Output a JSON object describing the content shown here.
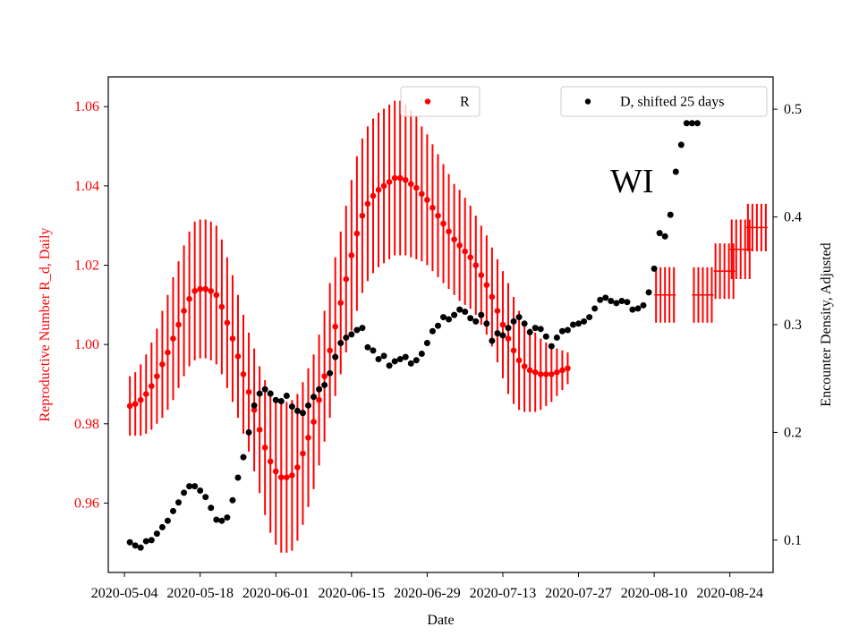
{
  "chart_data": {
    "type": "scatter",
    "xlabel": "Date",
    "ylabel_left": "Reproductive Number R_d, Daily",
    "ylabel_right": "Encounter Density, Adjusted",
    "annotation": "WI",
    "x_range": [
      "2020-05-01",
      "2020-09-01"
    ],
    "ylim_left": [
      0.9425,
      1.0675
    ],
    "ylim_right": [
      0.07,
      0.53
    ],
    "x_ticks": [
      "2020-05-04",
      "2020-05-18",
      "2020-06-01",
      "2020-06-15",
      "2020-06-29",
      "2020-07-13",
      "2020-07-27",
      "2020-08-10",
      "2020-08-24"
    ],
    "y_ticks_left": [
      "0.96",
      "0.98",
      "1.00",
      "1.02",
      "1.04",
      "1.06"
    ],
    "y_ticks_right": [
      "0.1",
      "0.2",
      "0.3",
      "0.4",
      "0.5"
    ],
    "grid": false,
    "colors": {
      "R": "#ff0000",
      "D": "#000000"
    },
    "legends": [
      {
        "label": "R",
        "color": "#ff0000",
        "position": "top-center"
      },
      {
        "label": "D, shifted 25 days",
        "color": "#000000",
        "position": "top-right"
      }
    ],
    "series_R": {
      "name": "R",
      "axis": "left",
      "start_date": "2020-05-05",
      "step_days": 1,
      "values": [
        0.9845,
        0.985,
        0.986,
        0.9875,
        0.9895,
        0.992,
        0.995,
        0.998,
        1.0015,
        1.005,
        1.0085,
        1.0115,
        1.0135,
        1.014,
        1.014,
        1.0135,
        1.0125,
        1.0095,
        1.0055,
        1.0015,
        0.997,
        0.9925,
        0.988,
        0.9835,
        0.9785,
        0.974,
        0.9705,
        0.968,
        0.9665,
        0.9665,
        0.967,
        0.969,
        0.9725,
        0.9765,
        0.9805,
        0.986,
        0.992,
        0.9985,
        1.0045,
        1.0105,
        1.0165,
        1.0225,
        1.028,
        1.0325,
        1.0355,
        1.0375,
        1.039,
        1.04,
        1.041,
        1.042,
        1.042,
        1.0415,
        1.0405,
        1.0395,
        1.038,
        1.0365,
        1.0345,
        1.0325,
        1.0305,
        1.0285,
        1.0265,
        1.025,
        1.0235,
        1.022,
        1.02,
        1.0175,
        1.015,
        1.012,
        1.0085,
        1.005,
        1.0015,
        0.9985,
        0.996,
        0.9945,
        0.9935,
        0.993,
        0.9925,
        0.9925,
        0.9925,
        0.993,
        0.9935,
        0.994
      ],
      "error": [
        0.0075,
        0.008,
        0.009,
        0.01,
        0.011,
        0.012,
        0.0135,
        0.0145,
        0.0155,
        0.016,
        0.0165,
        0.017,
        0.0175,
        0.0175,
        0.0175,
        0.0175,
        0.0175,
        0.017,
        0.0165,
        0.016,
        0.0155,
        0.015,
        0.015,
        0.0155,
        0.016,
        0.017,
        0.018,
        0.0185,
        0.019,
        0.019,
        0.019,
        0.0185,
        0.018,
        0.0175,
        0.017,
        0.0165,
        0.0165,
        0.017,
        0.0175,
        0.018,
        0.0185,
        0.019,
        0.0195,
        0.0195,
        0.0195,
        0.0195,
        0.0195,
        0.0195,
        0.0195,
        0.0195,
        0.0195,
        0.019,
        0.0185,
        0.018,
        0.017,
        0.0165,
        0.016,
        0.0155,
        0.015,
        0.0145,
        0.014,
        0.014,
        0.0135,
        0.013,
        0.0125,
        0.0125,
        0.0125,
        0.0125,
        0.013,
        0.0135,
        0.014,
        0.0135,
        0.0125,
        0.0115,
        0.0105,
        0.01,
        0.009,
        0.008,
        0.007,
        0.006,
        0.005,
        0.004
      ]
    },
    "series_R_extended": {
      "axis": "left",
      "segments": [
        {
          "date": "2020-08-12",
          "value": 1.0125,
          "error": 0.007
        },
        {
          "date": "2020-08-19",
          "value": 1.0125,
          "error": 0.007
        },
        {
          "date": "2020-08-23",
          "value": 1.0185,
          "error": 0.007
        },
        {
          "date": "2020-08-26",
          "value": 1.024,
          "error": 0.0075
        },
        {
          "date": "2020-08-29",
          "value": 1.0295,
          "error": 0.006
        }
      ]
    },
    "series_D": {
      "name": "D, shifted 25 days",
      "axis": "right",
      "points": [
        [
          "2020-05-05",
          0.098
        ],
        [
          "2020-05-06",
          0.095
        ],
        [
          "2020-05-07",
          0.093
        ],
        [
          "2020-05-08",
          0.099
        ],
        [
          "2020-05-09",
          0.1
        ],
        [
          "2020-05-10",
          0.106
        ],
        [
          "2020-05-11",
          0.112
        ],
        [
          "2020-05-12",
          0.118
        ],
        [
          "2020-05-13",
          0.127
        ],
        [
          "2020-05-14",
          0.135
        ],
        [
          "2020-05-15",
          0.144
        ],
        [
          "2020-05-16",
          0.15
        ],
        [
          "2020-05-17",
          0.15
        ],
        [
          "2020-05-18",
          0.146
        ],
        [
          "2020-05-19",
          0.14
        ],
        [
          "2020-05-20",
          0.13
        ],
        [
          "2020-05-21",
          0.119
        ],
        [
          "2020-05-22",
          0.118
        ],
        [
          "2020-05-23",
          0.121
        ],
        [
          "2020-05-24",
          0.137
        ],
        [
          "2020-05-25",
          0.158
        ],
        [
          "2020-05-26",
          0.177
        ],
        [
          "2020-05-27",
          0.2
        ],
        [
          "2020-05-28",
          0.225
        ],
        [
          "2020-05-29",
          0.236
        ],
        [
          "2020-05-30",
          0.24
        ],
        [
          "2020-05-31",
          0.236
        ],
        [
          "2020-06-01",
          0.23
        ],
        [
          "2020-06-02",
          0.229
        ],
        [
          "2020-06-03",
          0.234
        ],
        [
          "2020-06-04",
          0.224
        ],
        [
          "2020-06-05",
          0.22
        ],
        [
          "2020-06-06",
          0.218
        ],
        [
          "2020-06-07",
          0.225
        ],
        [
          "2020-06-08",
          0.233
        ],
        [
          "2020-06-09",
          0.24
        ],
        [
          "2020-06-10",
          0.244
        ],
        [
          "2020-06-11",
          0.255
        ],
        [
          "2020-06-12",
          0.27
        ],
        [
          "2020-06-13",
          0.283
        ],
        [
          "2020-06-14",
          0.288
        ],
        [
          "2020-06-15",
          0.291
        ],
        [
          "2020-06-16",
          0.295
        ],
        [
          "2020-06-17",
          0.297
        ],
        [
          "2020-06-18",
          0.279
        ],
        [
          "2020-06-19",
          0.276
        ],
        [
          "2020-06-20",
          0.268
        ],
        [
          "2020-06-21",
          0.271
        ],
        [
          "2020-06-22",
          0.262
        ],
        [
          "2020-06-23",
          0.266
        ],
        [
          "2020-06-24",
          0.268
        ],
        [
          "2020-06-25",
          0.27
        ],
        [
          "2020-06-26",
          0.264
        ],
        [
          "2020-06-27",
          0.267
        ],
        [
          "2020-06-28",
          0.273
        ],
        [
          "2020-06-29",
          0.283
        ],
        [
          "2020-06-30",
          0.294
        ],
        [
          "2020-07-01",
          0.299
        ],
        [
          "2020-07-02",
          0.307
        ],
        [
          "2020-07-03",
          0.305
        ],
        [
          "2020-07-04",
          0.309
        ],
        [
          "2020-07-05",
          0.314
        ],
        [
          "2020-07-06",
          0.312
        ],
        [
          "2020-07-07",
          0.306
        ],
        [
          "2020-07-08",
          0.303
        ],
        [
          "2020-07-09",
          0.309
        ],
        [
          "2020-07-10",
          0.301
        ],
        [
          "2020-07-11",
          0.285
        ],
        [
          "2020-07-12",
          0.292
        ],
        [
          "2020-07-13",
          0.29
        ],
        [
          "2020-07-14",
          0.297
        ],
        [
          "2020-07-15",
          0.303
        ],
        [
          "2020-07-16",
          0.307
        ],
        [
          "2020-07-17",
          0.301
        ],
        [
          "2020-07-18",
          0.293
        ],
        [
          "2020-07-19",
          0.297
        ],
        [
          "2020-07-20",
          0.296
        ],
        [
          "2020-07-21",
          0.289
        ],
        [
          "2020-07-22",
          0.28
        ],
        [
          "2020-07-23",
          0.288
        ],
        [
          "2020-07-24",
          0.294
        ],
        [
          "2020-07-25",
          0.295
        ],
        [
          "2020-07-26",
          0.3
        ],
        [
          "2020-07-27",
          0.301
        ],
        [
          "2020-07-28",
          0.303
        ],
        [
          "2020-07-29",
          0.307
        ],
        [
          "2020-07-30",
          0.315
        ],
        [
          "2020-07-31",
          0.323
        ],
        [
          "2020-08-01",
          0.325
        ],
        [
          "2020-08-02",
          0.322
        ],
        [
          "2020-08-03",
          0.32
        ],
        [
          "2020-08-04",
          0.322
        ],
        [
          "2020-08-05",
          0.321
        ],
        [
          "2020-08-06",
          0.314
        ],
        [
          "2020-08-07",
          0.315
        ],
        [
          "2020-08-08",
          0.318
        ],
        [
          "2020-08-09",
          0.33
        ],
        [
          "2020-08-10",
          0.352
        ],
        [
          "2020-08-11",
          0.385
        ],
        [
          "2020-08-12",
          0.382
        ],
        [
          "2020-08-13",
          0.402
        ],
        [
          "2020-08-14",
          0.442
        ],
        [
          "2020-08-15",
          0.467
        ],
        [
          "2020-08-16",
          0.487
        ],
        [
          "2020-08-17",
          0.487
        ],
        [
          "2020-08-18",
          0.487
        ]
      ]
    }
  }
}
